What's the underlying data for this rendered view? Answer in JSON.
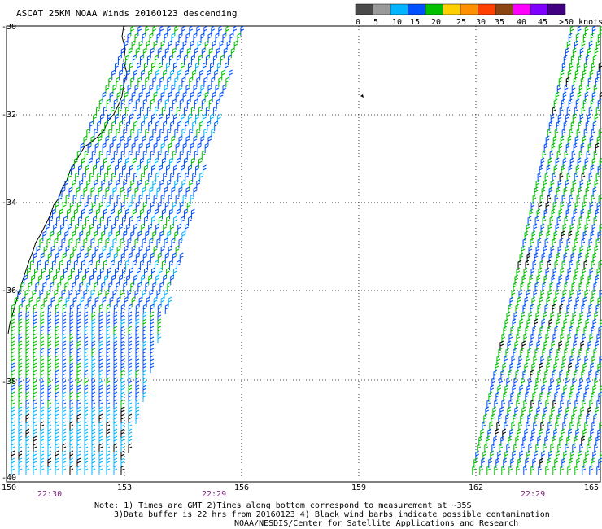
{
  "title": "ASCAT 25KM NOAA Winds 20160123 descending",
  "legend": {
    "labels": [
      "0",
      "5",
      "10",
      "15",
      "20",
      "25",
      "30",
      "35",
      "40",
      "45",
      ">50 knots"
    ],
    "colors": [
      "#4a4a4a",
      "#9a9a9a",
      "#00b4ff",
      "#0050ff",
      "#00c000",
      "#ffd000",
      "#ff9000",
      "#ff4000",
      "#8b4513",
      "#ff00ff",
      "#8000ff",
      "#400080"
    ]
  },
  "map": {
    "lon_labels": [
      "150",
      "153",
      "156",
      "159",
      "162",
      "165"
    ],
    "lat_labels": [
      "-30",
      "-32",
      "-34",
      "-36",
      "-38",
      "-40"
    ],
    "times": [
      "22:30",
      "22:29",
      "22:29"
    ]
  },
  "notes": {
    "line1": "Note: 1) Times are GMT 2)Times along bottom correspond to measurement at ~35S",
    "line2": "3)Data buffer is 22 hrs from 20160123 4) Black wind barbs indicate possible contamination",
    "line3": "NOAA/NESDIS/Center for Satellite Applications and Research"
  }
}
